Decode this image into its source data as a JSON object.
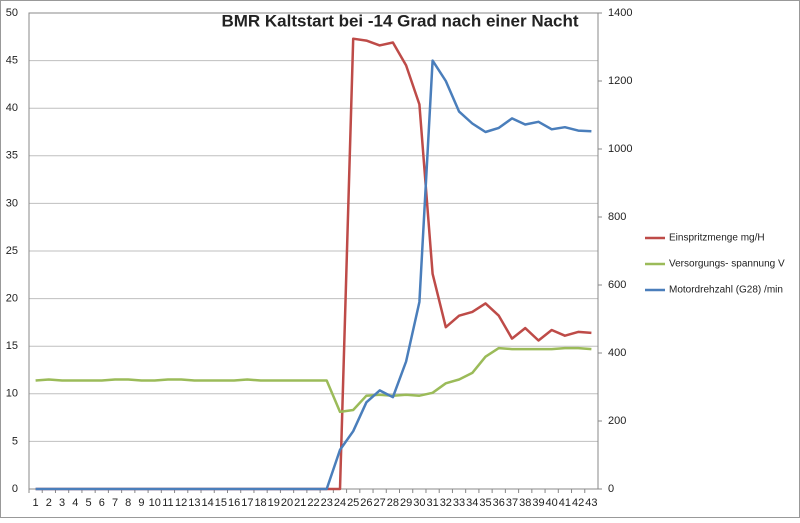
{
  "chart_data": {
    "type": "line",
    "title": "BMR Kaltstart bei -14 Grad nach einer Nacht",
    "categories": [
      "1",
      "2",
      "3",
      "4",
      "5",
      "6",
      "7",
      "8",
      "9",
      "10",
      "11",
      "12",
      "13",
      "14",
      "15",
      "16",
      "17",
      "18",
      "19",
      "20",
      "21",
      "22",
      "23",
      "24",
      "25",
      "26",
      "27",
      "28",
      "29",
      "30",
      "31",
      "32",
      "33",
      "34",
      "35",
      "36",
      "37",
      "38",
      "39",
      "40",
      "41",
      "42",
      "43"
    ],
    "series": [
      {
        "name": "Einspritzmenge  mg/H",
        "color": "#be4b48",
        "values": [
          0,
          0,
          0,
          0,
          0,
          0,
          0,
          0,
          0,
          0,
          0,
          0,
          0,
          0,
          0,
          0,
          0,
          0,
          0,
          0,
          0,
          0,
          0,
          0,
          47.3,
          47.1,
          46.6,
          46.9,
          44.5,
          40.4,
          22.6,
          17.0,
          18.2,
          18.6,
          19.5,
          18.2,
          15.8,
          16.9,
          15.6,
          16.7,
          16.1,
          16.5,
          16.4
        ]
      },
      {
        "name": "Versorgungs- spannung  V",
        "color": "#9bbb59",
        "values": [
          11.4,
          11.5,
          11.4,
          11.4,
          11.4,
          11.4,
          11.5,
          11.5,
          11.4,
          11.4,
          11.5,
          11.5,
          11.4,
          11.4,
          11.4,
          11.4,
          11.5,
          11.4,
          11.4,
          11.4,
          11.4,
          11.4,
          11.4,
          8.1,
          8.3,
          9.8,
          9.9,
          9.8,
          9.9,
          9.8,
          10.1,
          11.1,
          11.5,
          12.2,
          13.9,
          14.8,
          14.7,
          14.7,
          14.7,
          14.7,
          14.8,
          14.8,
          14.7
        ]
      },
      {
        "name": "Motordrehzahl (G28)  /min",
        "color": "#4a7ebb",
        "axis": "y2",
        "values": [
          0,
          0,
          0,
          0,
          0,
          0,
          0,
          0,
          0,
          0,
          0,
          0,
          0,
          0,
          0,
          0,
          0,
          0,
          0,
          0,
          0,
          0,
          0,
          115,
          170,
          255,
          290,
          270,
          375,
          550,
          1260,
          1200,
          1110,
          1075,
          1050,
          1062,
          1090,
          1072,
          1080,
          1058,
          1064,
          1054,
          1052
        ]
      }
    ],
    "ylim": [
      0,
      50
    ],
    "yticks": [
      0,
      5,
      10,
      15,
      20,
      25,
      30,
      35,
      40,
      45,
      50
    ],
    "y2lim": [
      0,
      1400
    ],
    "y2ticks": [
      0,
      200,
      400,
      600,
      800,
      1000,
      1200,
      1400
    ],
    "grid": true,
    "legend": "right"
  }
}
